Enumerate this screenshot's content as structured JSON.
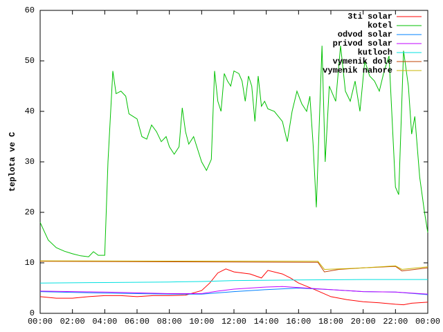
{
  "chart_data": {
    "type": "line",
    "y_label": "teplota ve C",
    "xlim": [
      0,
      24
    ],
    "xticks": [
      {
        "value": 0,
        "label": "00:00"
      },
      {
        "value": 2,
        "label": "02:00"
      },
      {
        "value": 4,
        "label": "04:00"
      },
      {
        "value": 6,
        "label": "06:00"
      },
      {
        "value": 8,
        "label": "08:00"
      },
      {
        "value": 10,
        "label": "10:00"
      },
      {
        "value": 12,
        "label": "12:00"
      },
      {
        "value": 14,
        "label": "14:00"
      },
      {
        "value": 16,
        "label": "16:00"
      },
      {
        "value": 18,
        "label": "18:00"
      },
      {
        "value": 20,
        "label": "20:00"
      },
      {
        "value": 22,
        "label": "22:00"
      },
      {
        "value": 24,
        "label": "00:00"
      }
    ],
    "ylim": [
      0,
      60
    ],
    "yticks": [
      0,
      10,
      20,
      30,
      40,
      50,
      60
    ],
    "grid": false,
    "legend": "top-right",
    "series": [
      {
        "name": "3ti solar",
        "color": "#ff0000",
        "x": [
          0,
          1,
          2,
          3,
          4,
          5,
          6,
          7,
          8,
          9,
          10,
          10.5,
          11,
          11.5,
          12,
          13,
          13.7,
          14.1,
          15,
          15.5,
          16,
          17,
          18,
          19,
          20,
          21,
          22,
          22.5,
          23,
          24
        ],
        "values": [
          3.3,
          3,
          3,
          3.3,
          3.5,
          3.5,
          3.3,
          3.5,
          3.5,
          3.6,
          4.5,
          6,
          8,
          8.8,
          8.2,
          7.8,
          7,
          8.5,
          7.8,
          7,
          6,
          4.7,
          3.3,
          2.7,
          2.3,
          2.1,
          1.8,
          1.7,
          2,
          2.2
        ]
      },
      {
        "name": "kotel",
        "color": "#00c000",
        "x": [
          0,
          0.5,
          1,
          1.5,
          2,
          2.5,
          3,
          3.3,
          3.6,
          4,
          4.2,
          4.5,
          4.7,
          5,
          5.3,
          5.5,
          6,
          6.3,
          6.6,
          6.9,
          7.2,
          7.5,
          7.8,
          8,
          8.3,
          8.6,
          8.8,
          9,
          9.2,
          9.5,
          10,
          10.3,
          10.6,
          10.8,
          11,
          11.2,
          11.4,
          11.6,
          11.8,
          12,
          12.3,
          12.5,
          12.7,
          12.9,
          13.1,
          13.3,
          13.5,
          13.7,
          13.9,
          14.1,
          14.5,
          15,
          15.3,
          15.6,
          15.9,
          16.2,
          16.5,
          16.7,
          16.9,
          17.1,
          17.45,
          17.65,
          17.9,
          18.3,
          18.6,
          18.9,
          19.2,
          19.5,
          19.8,
          20.1,
          20.4,
          20.7,
          21,
          21.3,
          21.6,
          22,
          22.2,
          22.5,
          22.8,
          23,
          23.2,
          23.5,
          23.8,
          24
        ],
        "values": [
          18,
          14.5,
          13,
          12.3,
          11.8,
          11.4,
          11.2,
          12.2,
          11.5,
          11.5,
          30,
          48,
          43.5,
          44,
          43,
          39.5,
          38.5,
          35,
          34.5,
          37.3,
          36,
          34,
          35,
          33,
          31.5,
          33,
          40.7,
          36,
          33.5,
          35,
          30,
          28.3,
          30.5,
          48,
          42,
          40,
          47.5,
          46,
          45,
          48,
          47.5,
          46,
          42,
          47,
          45,
          38,
          47,
          41,
          42,
          40.5,
          40,
          38,
          34,
          40,
          44,
          41.5,
          40,
          43,
          33.5,
          21,
          53,
          30,
          45,
          42,
          53,
          44,
          42,
          46,
          40,
          50,
          47,
          46,
          44,
          48,
          51,
          25,
          23.5,
          52,
          45,
          35.5,
          39,
          27,
          20,
          16
        ]
      },
      {
        "name": "odvod solar",
        "color": "#0080ff",
        "x": [
          0,
          4,
          8,
          10,
          12,
          14,
          16,
          18,
          20,
          22,
          24
        ],
        "values": [
          4.3,
          4,
          3.8,
          3.8,
          4.3,
          4.7,
          5,
          4.7,
          4.3,
          4.2,
          3.7
        ]
      },
      {
        "name": "privod solar",
        "color": "#c000ff",
        "x": [
          0,
          4,
          8,
          10,
          11,
          12,
          13,
          14,
          15,
          16,
          18,
          20,
          22,
          24
        ],
        "values": [
          4.4,
          4.2,
          3.9,
          3.9,
          4.4,
          4.8,
          5,
          5.2,
          5.3,
          5.1,
          4.7,
          4.3,
          4.2,
          3.8
        ]
      },
      {
        "name": "kutloch",
        "color": "#00e0e0",
        "x": [
          0,
          4,
          8,
          10,
          12,
          16,
          20,
          24
        ],
        "values": [
          6,
          6.1,
          6.2,
          6.3,
          6.5,
          6.6,
          6.7,
          6.7
        ]
      },
      {
        "name": "vymenik dole",
        "color": "#c04000",
        "x": [
          0,
          17.2,
          17.6,
          18.5,
          20,
          22,
          22.4,
          24
        ],
        "values": [
          10.3,
          10.1,
          8.2,
          8.7,
          9,
          9.3,
          8.4,
          9
        ]
      },
      {
        "name": "vymenik nahore",
        "color": "#c8b400",
        "x": [
          0,
          17.2,
          17.6,
          18.5,
          20,
          22,
          22.4,
          24
        ],
        "values": [
          10.4,
          10.3,
          8.7,
          8.8,
          9,
          9.4,
          8.7,
          9.2
        ]
      }
    ]
  }
}
